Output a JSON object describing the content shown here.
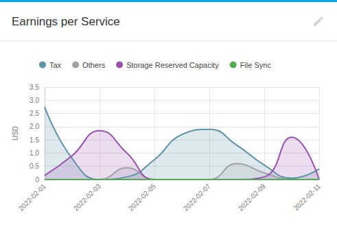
{
  "chart_data": {
    "type": "area",
    "title": "Earnings per Service",
    "y_label": "USD",
    "categories": [
      "2022-02-01",
      null,
      "2022-02-03",
      null,
      "2022-02-05",
      null,
      "2022-02-07",
      null,
      "2022-02-09",
      null,
      "2022-02-11"
    ],
    "series": [
      {
        "name": "Tax",
        "color": "#5b93a8",
        "values": [
          2.75,
          0.8,
          0,
          0.1,
          0.75,
          1.7,
          1.9,
          1.3,
          0.55,
          0.05,
          0.4
        ]
      },
      {
        "name": "Others",
        "color": "#a0a0a8",
        "values": [
          0,
          0,
          0,
          0.45,
          0,
          0,
          0,
          0.6,
          0.25,
          0,
          0
        ]
      },
      {
        "name": "Storage Reserved Capacity",
        "color": "#9b4fb0",
        "values": [
          0.15,
          0.9,
          1.85,
          1.0,
          0,
          0,
          0,
          0,
          0.1,
          1.6,
          0
        ]
      },
      {
        "name": "File Sync",
        "color": "#4caf50",
        "values": [
          0,
          0,
          0,
          0,
          0,
          0,
          0,
          0,
          0,
          0,
          0
        ]
      }
    ],
    "ylim": [
      0,
      3.5
    ],
    "yticks": [
      0,
      0.5,
      {
        "value": 1,
        "label": "1.0"
      },
      1.5,
      {
        "value": 2,
        "label": "2.0"
      },
      2.5,
      {
        "value": 3,
        "label": "3.0"
      },
      3.5
    ],
    "grid": true,
    "legend": "top"
  }
}
